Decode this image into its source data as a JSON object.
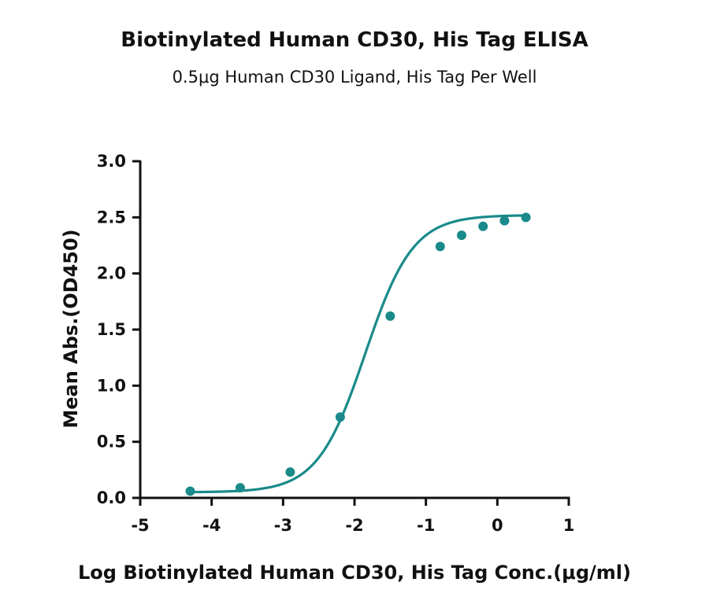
{
  "chart_data": {
    "type": "scatter",
    "title": "Biotinylated Human CD30, His Tag ELISA",
    "subtitle": "0.5μg Human CD30 Ligand, His Tag Per Well",
    "xlabel": "Log Biotinylated Human CD30, His Tag Conc.(μg/ml)",
    "ylabel": "Mean Abs.(OD450)",
    "xlim": [
      -5,
      1
    ],
    "ylim": [
      0,
      3
    ],
    "xticks": [
      "-5",
      "-4",
      "-3",
      "-2",
      "-1",
      "0",
      "1"
    ],
    "yticks": [
      "0.0",
      "0.5",
      "1.0",
      "1.5",
      "2.0",
      "2.5",
      "3.0"
    ],
    "grid": false,
    "color": "#1a8a8a",
    "series": [
      {
        "x": [
          -4.3,
          -3.6,
          -2.9,
          -2.2,
          -1.5,
          -0.8,
          -0.5,
          -0.2,
          0.1,
          0.4
        ],
        "y": [
          0.06,
          0.09,
          0.23,
          0.72,
          1.62,
          2.24,
          2.34,
          2.42,
          2.47,
          2.5
        ],
        "fit": {
          "model": "4PL",
          "bottom": 0.05,
          "top": 2.52,
          "log_ec50": -1.85,
          "hill": 1.3
        }
      }
    ]
  }
}
